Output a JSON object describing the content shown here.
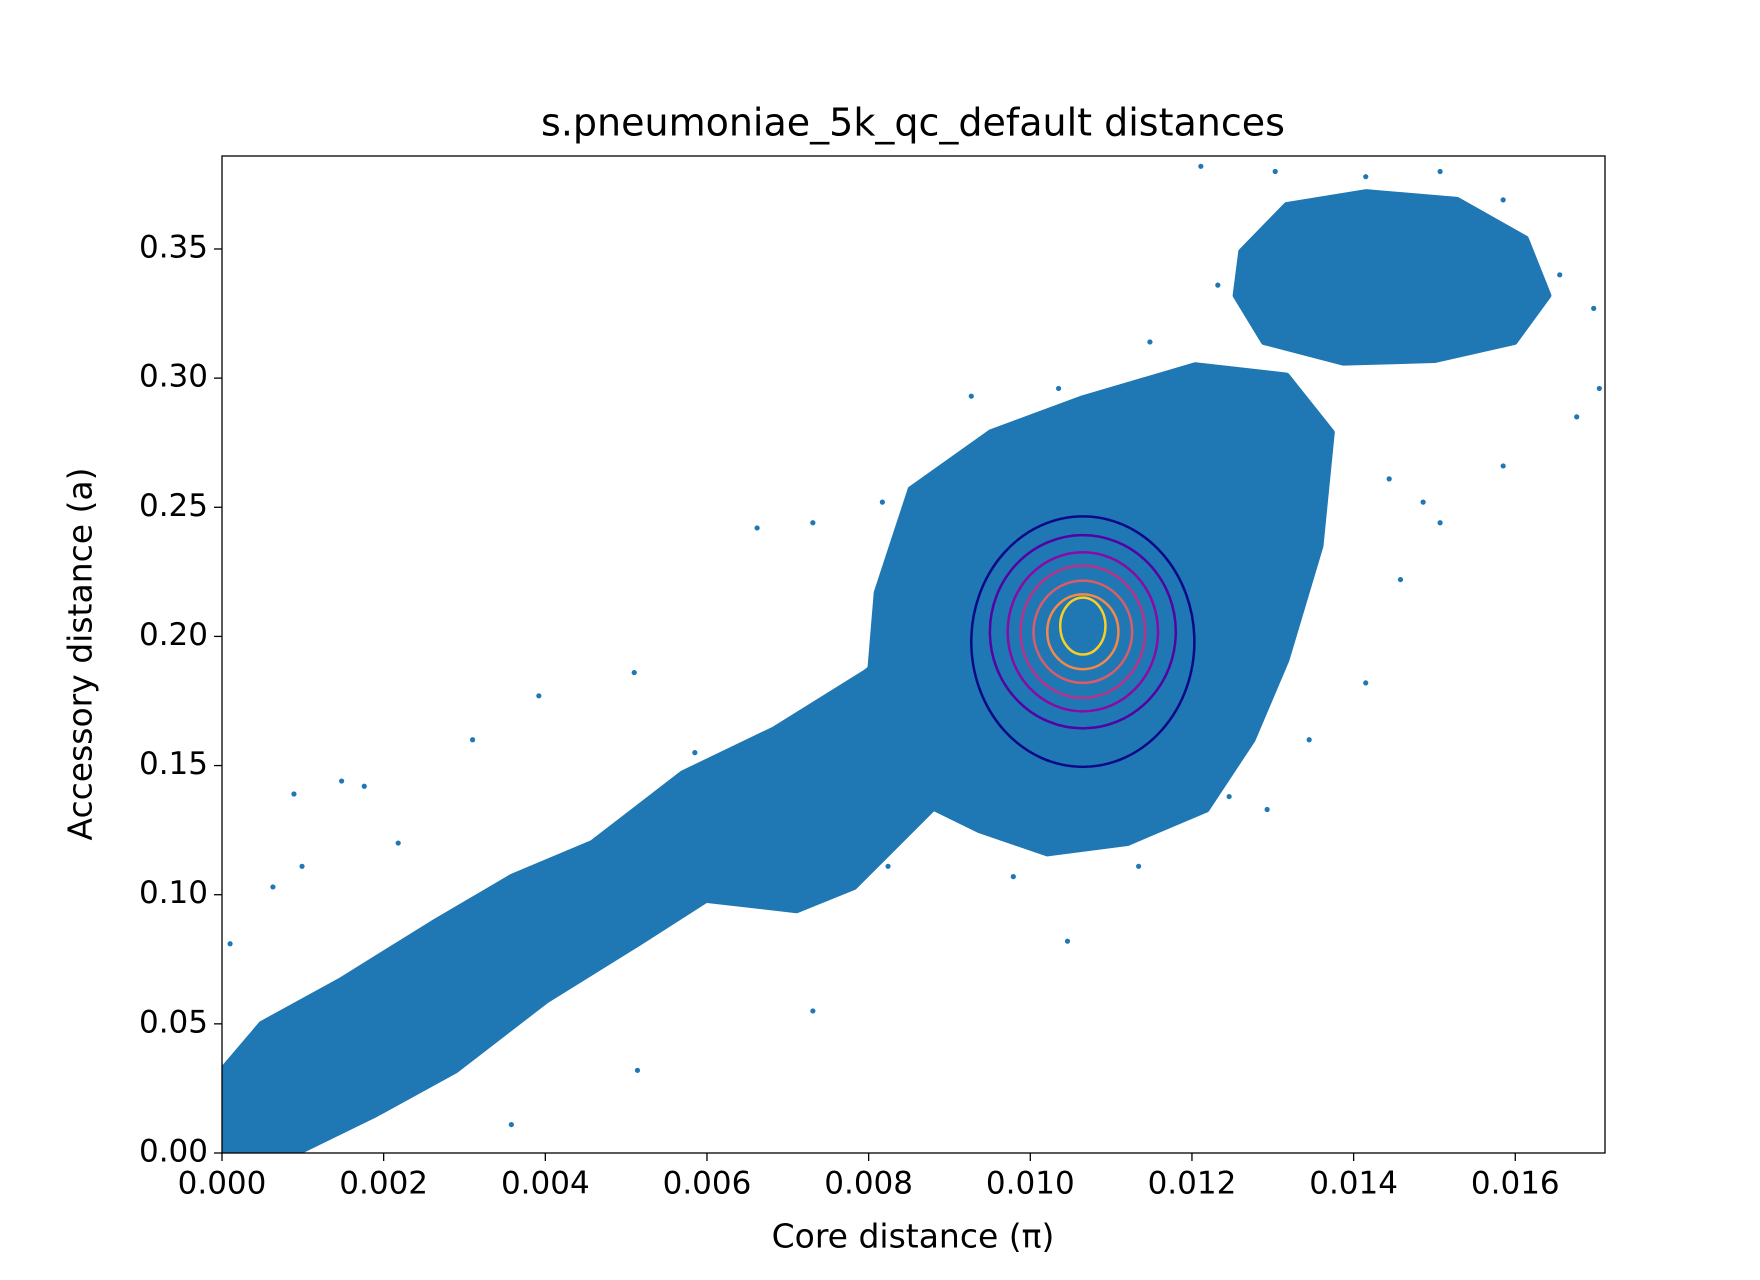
{
  "chart_data": {
    "type": "scatter",
    "title": "s.pneumoniae_5k_qc_default distances",
    "x_label": "Core distance (π)",
    "y_label": "Accessory distance (a)",
    "xlim": [
      0,
      0.01711
    ],
    "ylim": [
      0,
      0.386
    ],
    "xticks": [
      {
        "value": 0,
        "label": "0.000"
      },
      {
        "value": 0.002,
        "label": "0.002"
      },
      {
        "value": 0.004,
        "label": "0.004"
      },
      {
        "value": 0.006,
        "label": "0.006"
      },
      {
        "value": 0.008,
        "label": "0.008"
      },
      {
        "value": 0.01,
        "label": "0.010"
      },
      {
        "value": 0.012,
        "label": "0.012"
      },
      {
        "value": 0.014,
        "label": "0.014"
      },
      {
        "value": 0.016,
        "label": "0.016"
      }
    ],
    "yticks": [
      {
        "value": 0,
        "label": "0.00"
      },
      0.05,
      {
        "value": 0.1,
        "label": "0.10"
      },
      0.15,
      {
        "value": 0.2,
        "label": "0.20"
      },
      0.25,
      {
        "value": 0.3,
        "label": "0.30"
      },
      0.35
    ],
    "series": [
      {
        "color": "#1f77b4",
        "x": [
          0.01704,
          0.01676,
          0.01585,
          0.01697,
          0.01046,
          0.00731,
          0.00514,
          0.00358,
          0.00089,
          0.00148,
          0.00176,
          0.0031,
          0.00392,
          0.0051,
          0.00662,
          0.00731,
          0.00817,
          0.00927,
          0.01486,
          0.01507,
          0.01458,
          0.01293,
          0.01211,
          0.01507,
          0.0001,
          0.00063,
          0.00099,
          0.00218,
          0.00585,
          0.00683,
          0.00824,
          0.00979,
          0.01134,
          0.01246,
          0.01345,
          0.01415,
          0.01444,
          0.01035,
          0.01148,
          0.01303,
          0.01415,
          0.01585,
          0.01655,
          0.01232
        ],
        "y": [
          0.296,
          0.285,
          0.266,
          0.327,
          0.082,
          0.055,
          0.032,
          0.011,
          0.139,
          0.144,
          0.142,
          0.16,
          0.177,
          0.186,
          0.242,
          0.244,
          0.252,
          0.293,
          0.252,
          0.244,
          0.222,
          0.133,
          0.382,
          0.38,
          0.081,
          0.103,
          0.111,
          0.12,
          0.155,
          0.125,
          0.111,
          0.107,
          0.111,
          0.138,
          0.16,
          0.182,
          0.261,
          0.296,
          0.314,
          0.38,
          0.378,
          0.369,
          0.34,
          0.336
        ]
      }
    ],
    "regions": [
      {
        "x": [
          0,
          0,
          0.00049,
          0.00148,
          0.00261,
          0.00359,
          0.00458,
          0.0057,
          0.00683,
          0.00796,
          0.00852,
          0.00894,
          0.00782,
          0.00711,
          0.00599,
          0.00514,
          0.00401,
          0.00289,
          0.0019,
          0.00092
        ],
        "y": [
          0,
          0.032,
          0.05,
          0.067,
          0.089,
          0.107,
          0.12,
          0.147,
          0.164,
          0.186,
          0.2,
          0.138,
          0.103,
          0.094,
          0.098,
          0.081,
          0.059,
          0.032,
          0.015,
          0
        ]
      },
      {
        "x": [
          0.00852,
          0.00951,
          0.01063,
          0.01204,
          0.01317,
          0.01373,
          0.01359,
          0.01317,
          0.01275,
          0.01218,
          0.0112,
          0.01021,
          0.00937,
          0.00852,
          0.00796,
          0.0081
        ],
        "y": [
          0.257,
          0.279,
          0.292,
          0.305,
          0.301,
          0.279,
          0.235,
          0.191,
          0.16,
          0.133,
          0.12,
          0.116,
          0.125,
          0.138,
          0.164,
          0.217
        ]
      },
      {
        "x": [
          0.01261,
          0.01317,
          0.01415,
          0.01528,
          0.01613,
          0.01641,
          0.01599,
          0.015,
          0.01387,
          0.01289,
          0.01254
        ],
        "y": [
          0.349,
          0.367,
          0.372,
          0.369,
          0.354,
          0.332,
          0.314,
          0.307,
          0.306,
          0.314,
          0.332
        ]
      }
    ],
    "contours": [
      {
        "color": "#0d0887",
        "center": [
          0.01065,
          0.198
        ],
        "radius": [
          0.00138,
          0.0485
        ]
      },
      {
        "color": "#5302a3",
        "center": [
          0.01065,
          0.2018
        ],
        "radius": [
          0.00115,
          0.0374
        ]
      },
      {
        "color": "#8b0aa5",
        "center": [
          0.01065,
          0.2018
        ],
        "radius": [
          0.00093,
          0.0308
        ]
      },
      {
        "color": "#b83289",
        "center": [
          0.01065,
          0.2018
        ],
        "radius": [
          0.00077,
          0.0256
        ]
      },
      {
        "color": "#db5c68",
        "center": [
          0.01065,
          0.2018
        ],
        "radius": [
          0.00061,
          0.0198
        ]
      },
      {
        "color": "#f48849",
        "center": [
          0.01065,
          0.2018
        ],
        "radius": [
          0.00044,
          0.0145
        ]
      },
      {
        "color": "#fcce25",
        "center": [
          0.01065,
          0.204
        ],
        "radius": [
          0.00028,
          0.011
        ]
      }
    ]
  }
}
